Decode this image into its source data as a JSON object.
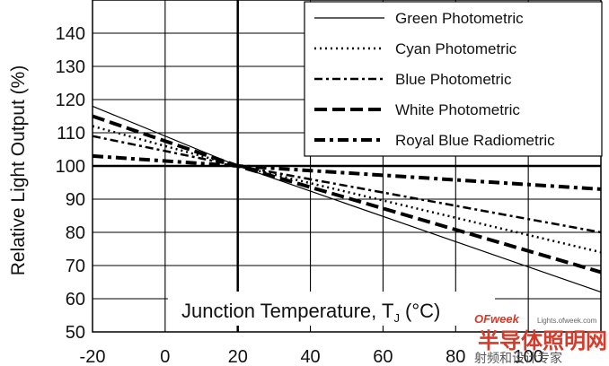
{
  "chart_data": {
    "type": "line",
    "title": "",
    "xlabel": "Junction Temperature, T",
    "xlabel_sub": "J",
    "xlabel_unit": " (°C)",
    "ylabel": "Relative Light Output (%)",
    "xlim": [
      -20,
      120
    ],
    "ylim": [
      50,
      150
    ],
    "xticks": [
      "-20",
      "0",
      "20",
      "40",
      "60",
      "80",
      "100"
    ],
    "yticks": [
      "50",
      "60",
      "70",
      "80",
      "90",
      "100",
      "110",
      "120",
      "130",
      "140"
    ],
    "grid": true,
    "reference_line_y": 100,
    "legend_position": "top-right",
    "series": [
      {
        "name": "Green Photometric",
        "style": "solid",
        "x": [
          -20,
          20,
          120
        ],
        "y": [
          118,
          100,
          62
        ]
      },
      {
        "name": "Cyan Photometric",
        "style": "dotted",
        "x": [
          -20,
          20,
          120
        ],
        "y": [
          112,
          100,
          74
        ]
      },
      {
        "name": "Blue Photometric",
        "style": "dashdot",
        "x": [
          -20,
          20,
          120
        ],
        "y": [
          109,
          100,
          80
        ]
      },
      {
        "name": "White Photometric",
        "style": "longdash",
        "x": [
          -20,
          20,
          120
        ],
        "y": [
          115,
          100,
          68
        ]
      },
      {
        "name": "Royal Blue Radiometric",
        "style": "thickdashdot",
        "x": [
          -20,
          20,
          120
        ],
        "y": [
          103,
          100,
          93
        ]
      }
    ]
  },
  "watermark": {
    "brand": "OFweek",
    "site": "Lights.ofweek.com",
    "cn_title": "半导体照明网",
    "cn_sub": "射频和设计专家"
  }
}
